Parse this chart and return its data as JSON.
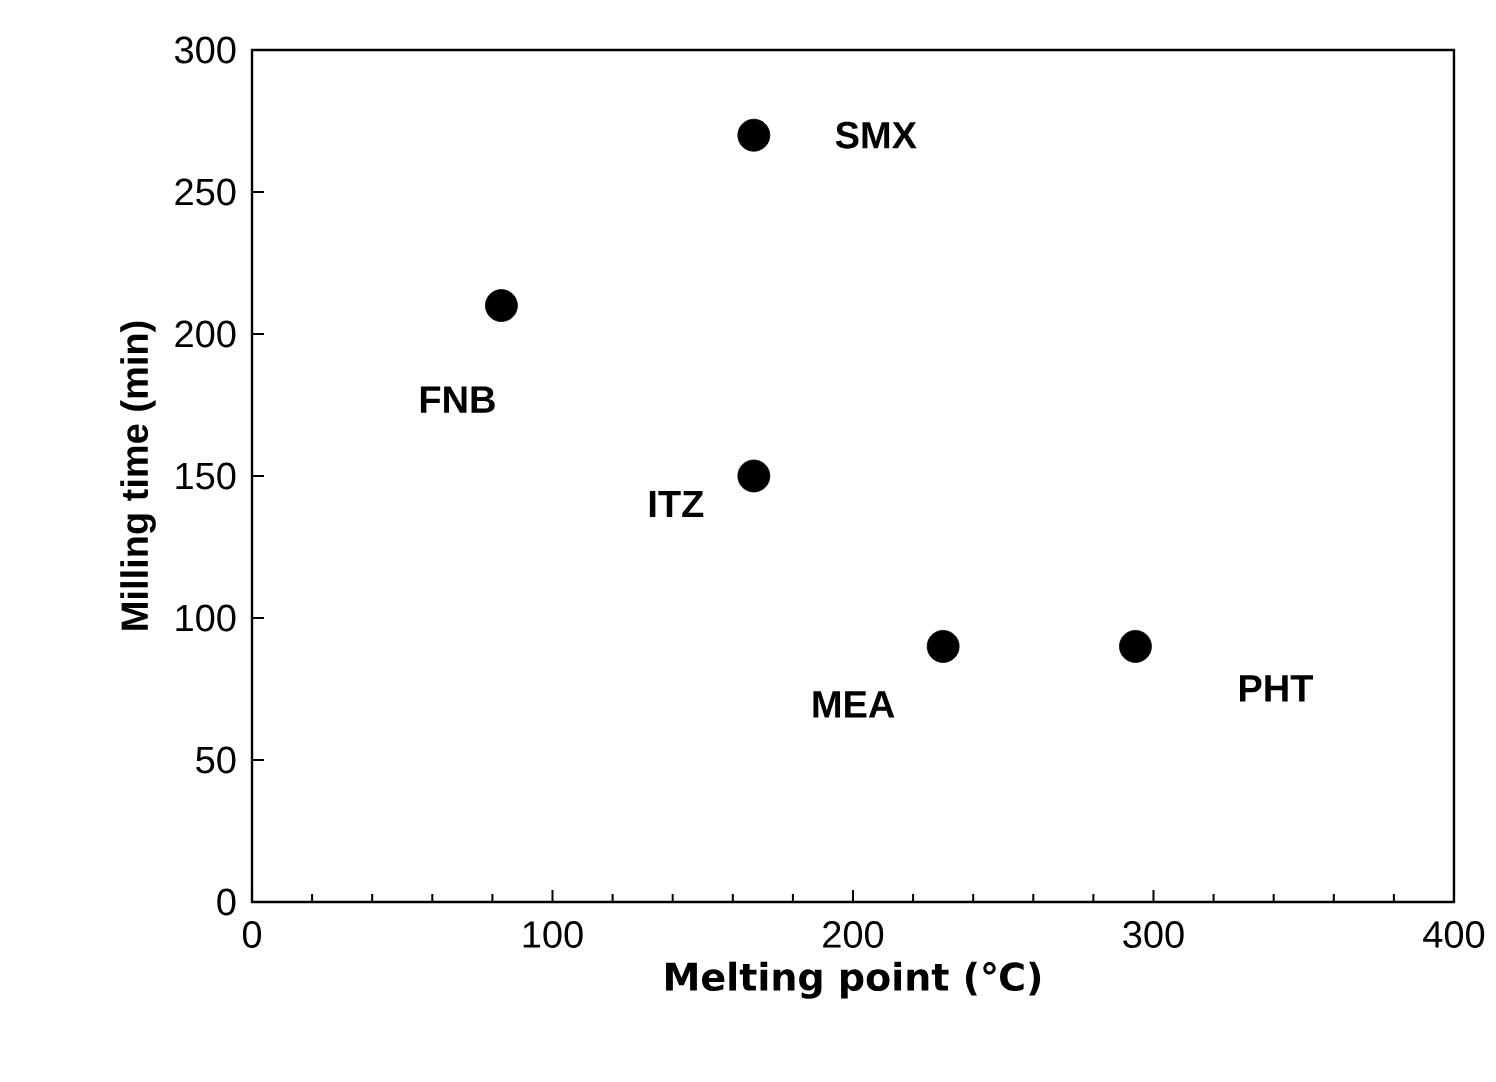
{
  "chart_data": {
    "type": "scatter",
    "xlabel": "Melting point (℃)",
    "ylabel": "Milling time (min)",
    "x": [
      83,
      167,
      167,
      230,
      294
    ],
    "values": [
      210,
      270,
      150,
      90,
      90
    ],
    "color": "#000000",
    "marker": "circle",
    "grid": false,
    "xlim": [
      0,
      400
    ],
    "xticks": [
      0,
      100,
      200,
      300,
      400
    ],
    "ylim": [
      0,
      300
    ],
    "yticks": [
      0,
      50,
      100,
      150,
      200,
      250,
      300
    ],
    "annotations": [
      {
        "text": "FNB",
        "x": 83,
        "y": 210
      },
      {
        "text": "SMX",
        "x": 167,
        "y": 270
      },
      {
        "text": "ITZ",
        "x": 167,
        "y": 150
      },
      {
        "text": "MEA",
        "x": 230,
        "y": 90
      },
      {
        "text": "PHT",
        "x": 294,
        "y": 90
      }
    ]
  }
}
